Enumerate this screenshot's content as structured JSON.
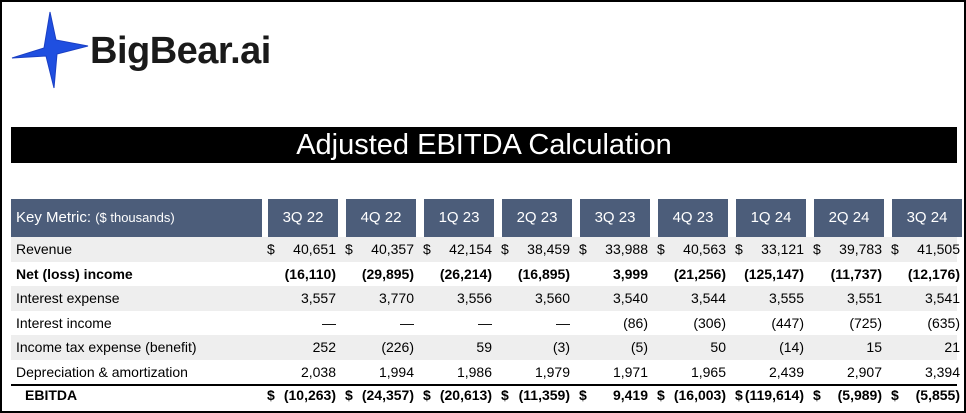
{
  "brand": {
    "logo_text": "BigBear.ai",
    "star_color": "#1f4fe0"
  },
  "banner": {
    "title": "Adjusted EBITDA Calculation"
  },
  "table": {
    "key_label": "Key Metric:",
    "key_unit": "($ thousands)",
    "columns": [
      "3Q 22",
      "4Q 22",
      "1Q 23",
      "2Q 23",
      "3Q 23",
      "4Q 23",
      "1Q 24",
      "2Q 24",
      "3Q 24"
    ],
    "rows": [
      {
        "label": "Revenue",
        "bold": false,
        "dollar": true,
        "total": false,
        "values": [
          "40,651",
          "40,357",
          "42,154",
          "38,459",
          "33,988",
          "40,563",
          "33,121",
          "39,783",
          "41,505"
        ]
      },
      {
        "label": "Net (loss) income",
        "bold": true,
        "dollar": false,
        "total": false,
        "values": [
          "(16,110)",
          "(29,895)",
          "(26,214)",
          "(16,895)",
          "3,999",
          "(21,256)",
          "(125,147)",
          "(11,737)",
          "(12,176)"
        ]
      },
      {
        "label": "Interest expense",
        "bold": false,
        "dollar": false,
        "total": false,
        "values": [
          "3,557",
          "3,770",
          "3,556",
          "3,560",
          "3,540",
          "3,544",
          "3,555",
          "3,551",
          "3,541"
        ]
      },
      {
        "label": "Interest income",
        "bold": false,
        "dollar": false,
        "total": false,
        "values": [
          "—",
          "—",
          "—",
          "—",
          "(86)",
          "(306)",
          "(447)",
          "(725)",
          "(635)"
        ]
      },
      {
        "label": "Income tax expense (benefit)",
        "bold": false,
        "dollar": false,
        "total": false,
        "values": [
          "252",
          "(226)",
          "59",
          "(3)",
          "(5)",
          "50",
          "(14)",
          "15",
          "21"
        ]
      },
      {
        "label": "Depreciation & amortization",
        "bold": false,
        "dollar": false,
        "total": false,
        "values": [
          "2,038",
          "1,994",
          "1,986",
          "1,979",
          "1,971",
          "1,965",
          "2,439",
          "2,907",
          "3,394"
        ]
      },
      {
        "label": "EBITDA",
        "bold": true,
        "dollar": true,
        "total": true,
        "values": [
          "(10,263)",
          "(24,357)",
          "(20,613)",
          "(11,359)",
          "9,419",
          "(16,003)",
          "(119,614)",
          "(5,989)",
          "(5,855)"
        ]
      }
    ],
    "dollar_sign": "$"
  }
}
